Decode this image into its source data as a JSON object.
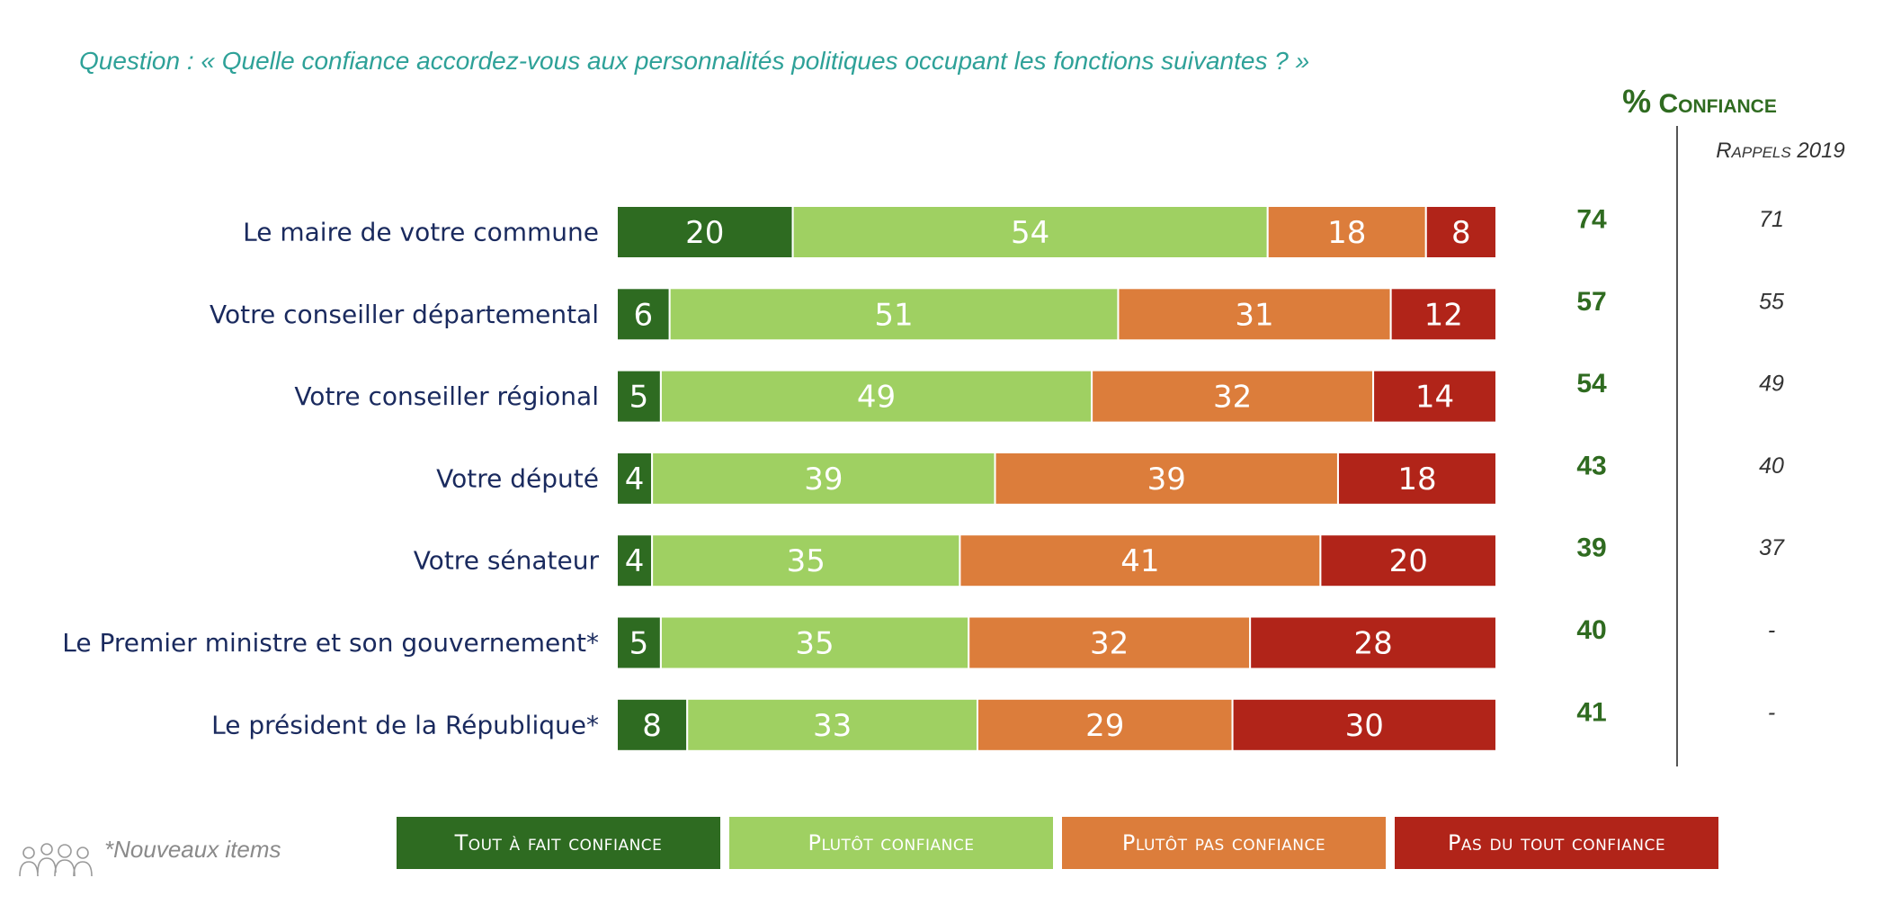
{
  "question": "Question : « Quelle confiance accordez-vous aux personnalités politiques occupant les fonctions suivantes ? »",
  "confidence_header": {
    "pct": "%",
    "label": "Confiance"
  },
  "rappels_header": "Rappels 2019",
  "footnote": "*Nouveaux items",
  "colors": {
    "tout_a_fait": "#2e6b21",
    "plutot": "#9fd062",
    "plutot_pas": "#dc7d3b",
    "pas_du_tout": "#b12419",
    "confidence_text": "#2f6b20",
    "question_text": "#2ea198",
    "row_label_text": "#1a2a5e"
  },
  "icons": {
    "people": "people-group-icon"
  },
  "chart_data": {
    "type": "bar",
    "orientation": "horizontal",
    "stacked": true,
    "categories": [
      "Le maire de votre commune",
      "Votre conseiller départemental",
      "Votre conseiller régional",
      "Votre député",
      "Votre sénateur",
      "Le Premier ministre et son gouvernement*",
      "Le président de la République*"
    ],
    "series": [
      {
        "name": "Tout à fait confiance",
        "color": "#2e6b21",
        "values": [
          20,
          6,
          5,
          4,
          4,
          5,
          8
        ]
      },
      {
        "name": "Plutôt confiance",
        "color": "#9fd062",
        "values": [
          54,
          51,
          49,
          39,
          35,
          35,
          33
        ]
      },
      {
        "name": "Plutôt pas confiance",
        "color": "#dc7d3b",
        "values": [
          18,
          31,
          32,
          39,
          41,
          32,
          29
        ]
      },
      {
        "name": "Pas du tout confiance",
        "color": "#b12419",
        "values": [
          8,
          12,
          14,
          18,
          20,
          28,
          30
        ]
      }
    ],
    "confiance": [
      74,
      57,
      54,
      43,
      39,
      40,
      41
    ],
    "rappels_2019": [
      "71",
      "55",
      "49",
      "40",
      "37",
      "-",
      "-"
    ],
    "xlim": [
      0,
      100
    ],
    "legend_position": "bottom"
  }
}
